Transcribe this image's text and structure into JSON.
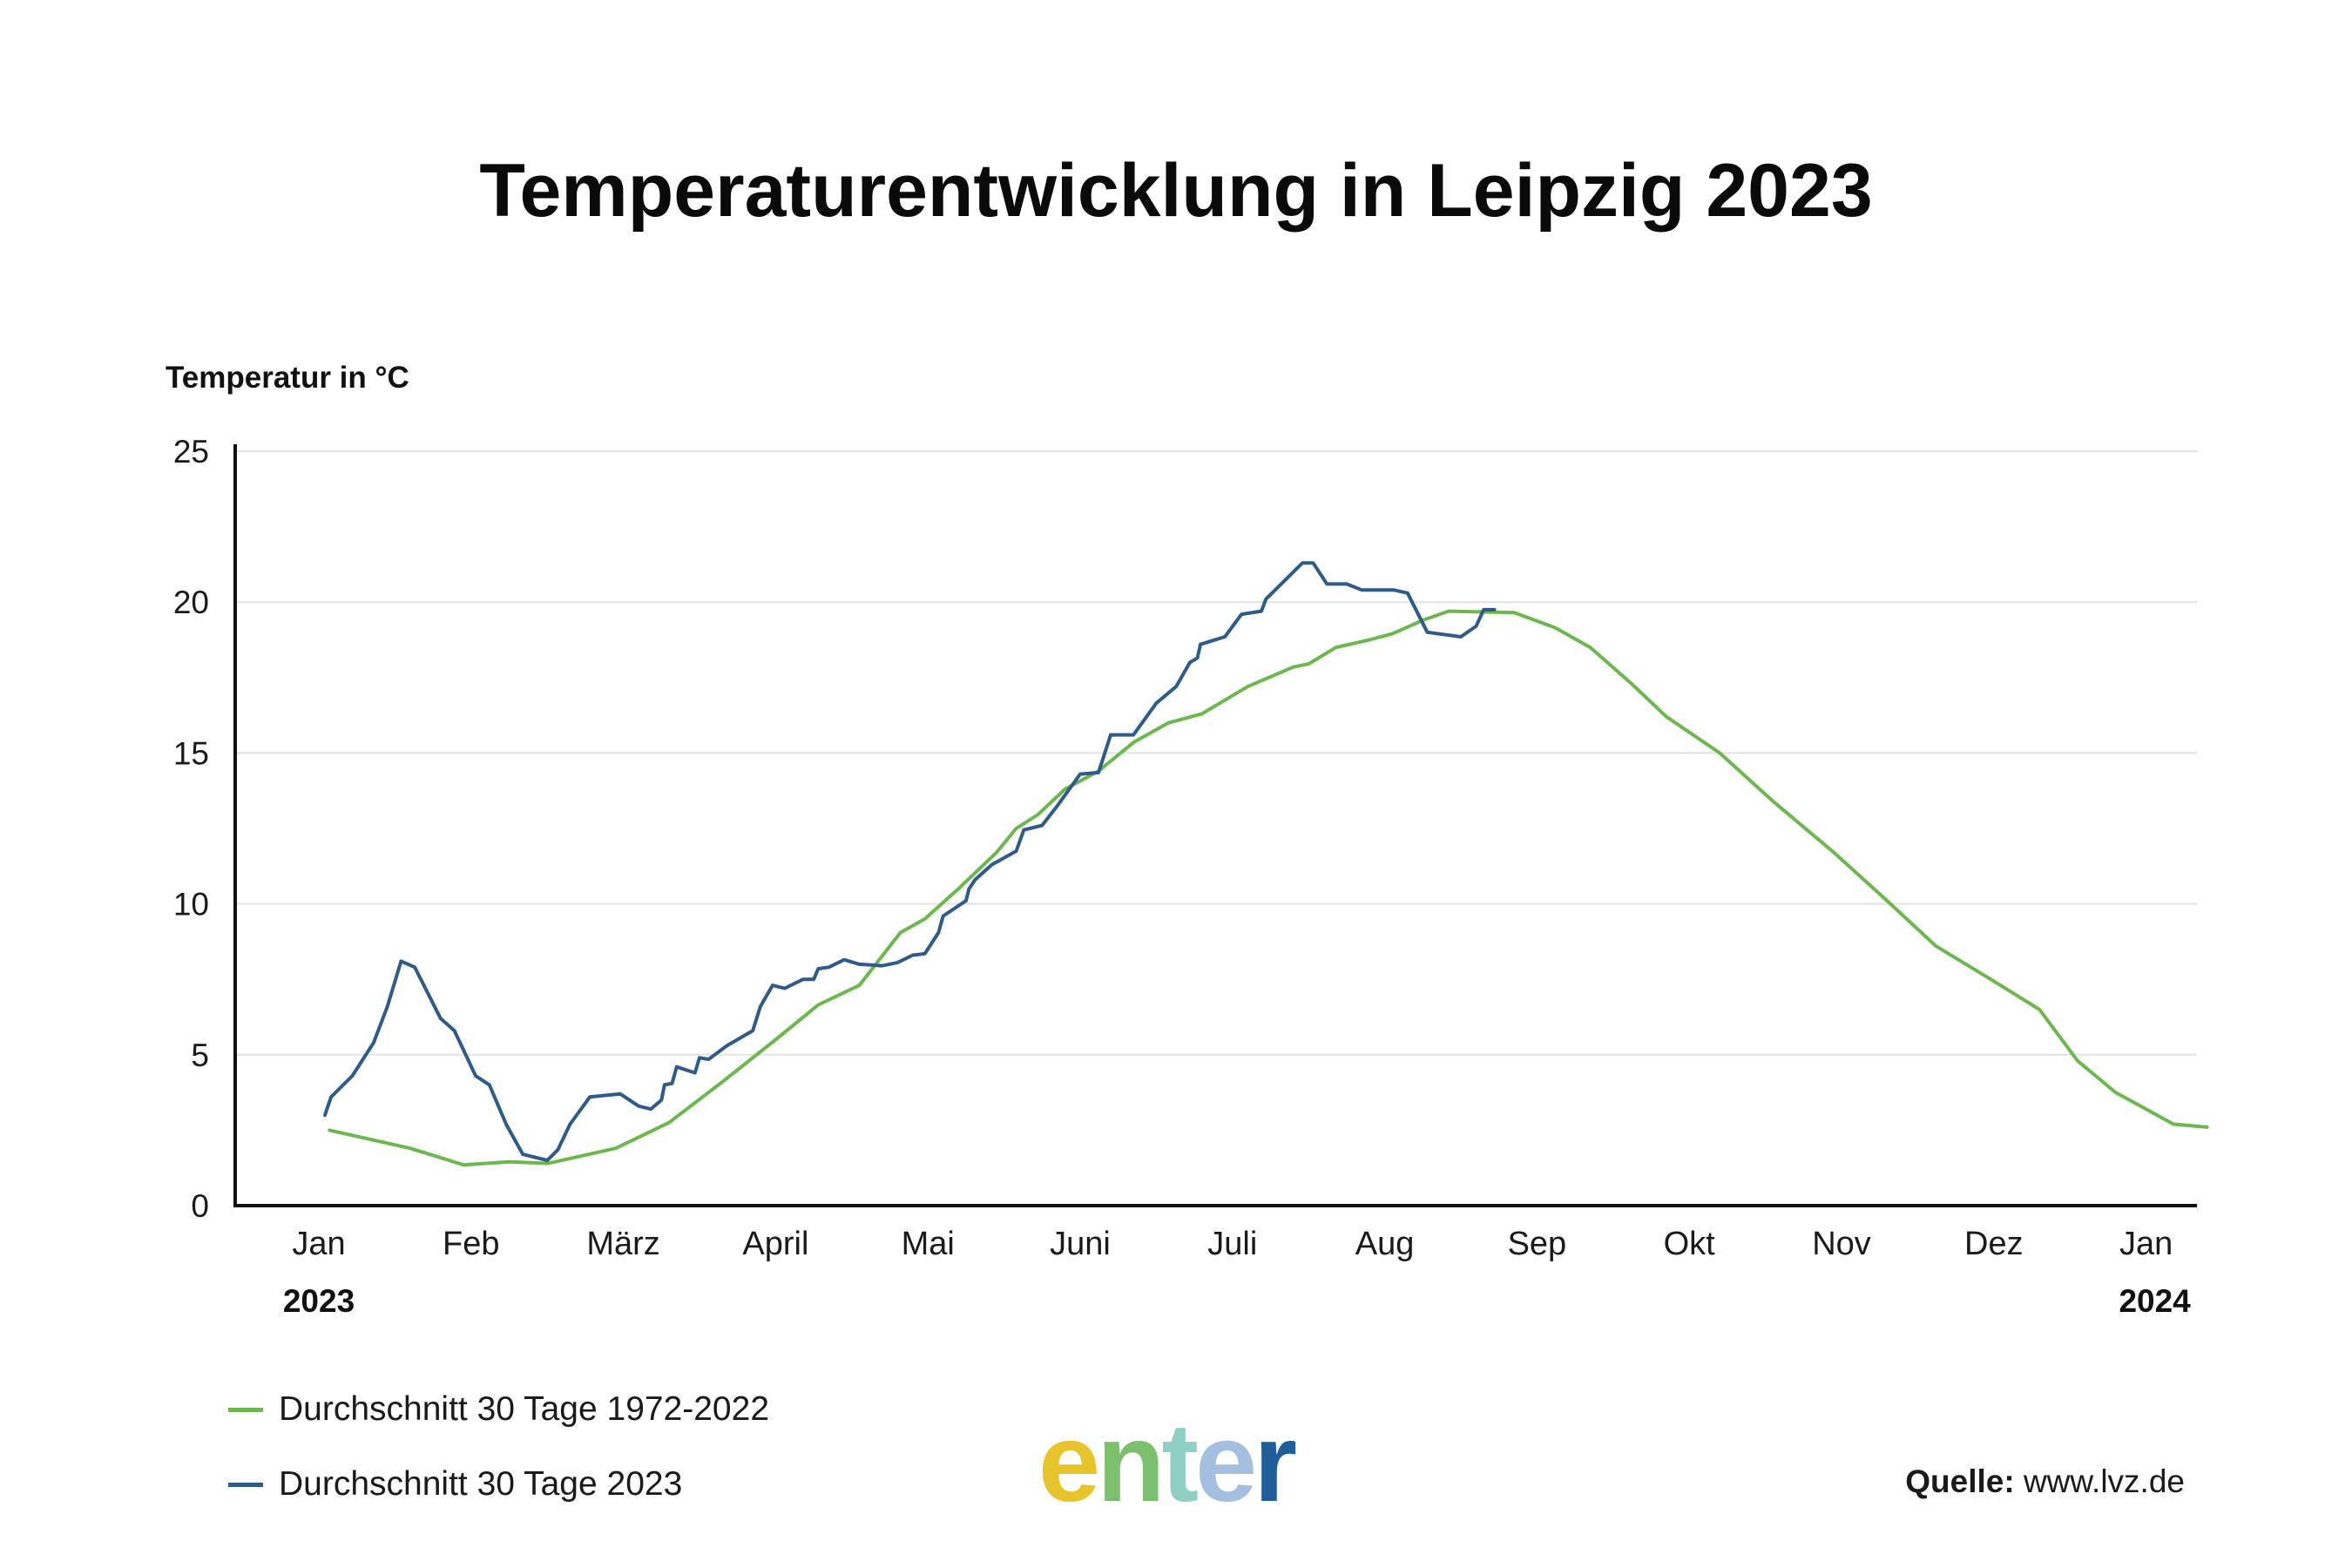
{
  "title": "Temperaturentwicklung in Leipzig 2023",
  "y_axis_label": "Temperatur in °C",
  "source": {
    "label": "Quelle:",
    "value": "www.lvz.de"
  },
  "logo": {
    "text": "enter",
    "letters": [
      "e",
      "n",
      "t",
      "e",
      "r"
    ]
  },
  "chart_data": {
    "type": "line",
    "ylim": [
      0,
      25
    ],
    "yticks": [
      0,
      5,
      10,
      15,
      20,
      25
    ],
    "xlim": [
      0,
      12
    ],
    "x_unit": "Monate ab Januar 2023",
    "months": [
      "Jan",
      "Feb",
      "März",
      "April",
      "Mai",
      "Juni",
      "Juli",
      "Aug",
      "Sep",
      "Okt",
      "Nov",
      "Dez",
      "Jan"
    ],
    "year_labels": [
      {
        "at": 0,
        "text": "2023"
      },
      {
        "at": 12,
        "text": "2024"
      }
    ],
    "grid": true,
    "legend_position": "bottom-left",
    "series": [
      {
        "name": "Durchschnitt 30 Tage 1972-2022",
        "color": "#6cb84f",
        "points": [
          [
            0.07,
            2.5
          ],
          [
            0.6,
            1.9
          ],
          [
            0.95,
            1.35
          ],
          [
            1.25,
            1.45
          ],
          [
            1.5,
            1.4
          ],
          [
            1.55,
            1.45
          ],
          [
            1.95,
            1.9
          ],
          [
            2.3,
            2.75
          ],
          [
            2.65,
            4.1
          ],
          [
            3.0,
            5.5
          ],
          [
            3.28,
            6.65
          ],
          [
            3.55,
            7.3
          ],
          [
            3.82,
            9.05
          ],
          [
            3.98,
            9.5
          ],
          [
            4.2,
            10.5
          ],
          [
            4.45,
            11.7
          ],
          [
            4.58,
            12.5
          ],
          [
            4.72,
            12.95
          ],
          [
            4.9,
            13.8
          ],
          [
            5.12,
            14.4
          ],
          [
            5.35,
            15.35
          ],
          [
            5.58,
            16.0
          ],
          [
            5.8,
            16.3
          ],
          [
            6.1,
            17.2
          ],
          [
            6.4,
            17.85
          ],
          [
            6.5,
            17.95
          ],
          [
            6.68,
            18.5
          ],
          [
            6.9,
            18.75
          ],
          [
            7.05,
            18.95
          ],
          [
            7.25,
            19.4
          ],
          [
            7.42,
            19.7
          ],
          [
            7.85,
            19.65
          ],
          [
            8.12,
            19.15
          ],
          [
            8.35,
            18.5
          ],
          [
            8.62,
            17.3
          ],
          [
            8.85,
            16.2
          ],
          [
            9.2,
            15.0
          ],
          [
            9.55,
            13.4
          ],
          [
            9.95,
            11.7
          ],
          [
            10.3,
            10.1
          ],
          [
            10.62,
            8.6
          ],
          [
            10.98,
            7.5
          ],
          [
            11.3,
            6.5
          ],
          [
            11.55,
            4.8
          ],
          [
            11.8,
            3.75
          ],
          [
            12.0,
            3.2
          ],
          [
            12.18,
            2.7
          ],
          [
            12.4,
            2.6
          ]
        ]
      },
      {
        "name": "Durchschnitt 30 Tage 2023",
        "color": "#2f5b8a",
        "points": [
          [
            0.04,
            3.0
          ],
          [
            0.08,
            3.6
          ],
          [
            0.22,
            4.3
          ],
          [
            0.36,
            5.4
          ],
          [
            0.45,
            6.6
          ],
          [
            0.54,
            8.1
          ],
          [
            0.63,
            7.9
          ],
          [
            0.8,
            6.2
          ],
          [
            0.89,
            5.8
          ],
          [
            1.03,
            4.3
          ],
          [
            1.12,
            4.0
          ],
          [
            1.23,
            2.7
          ],
          [
            1.34,
            1.7
          ],
          [
            1.5,
            1.5
          ],
          [
            1.57,
            1.85
          ],
          [
            1.65,
            2.7
          ],
          [
            1.78,
            3.6
          ],
          [
            1.98,
            3.7
          ],
          [
            2.1,
            3.3
          ],
          [
            2.18,
            3.2
          ],
          [
            2.25,
            3.5
          ],
          [
            2.27,
            4.0
          ],
          [
            2.32,
            4.05
          ],
          [
            2.35,
            4.6
          ],
          [
            2.47,
            4.4
          ],
          [
            2.5,
            4.9
          ],
          [
            2.56,
            4.85
          ],
          [
            2.68,
            5.3
          ],
          [
            2.85,
            5.8
          ],
          [
            2.9,
            6.6
          ],
          [
            2.98,
            7.3
          ],
          [
            3.06,
            7.2
          ],
          [
            3.18,
            7.5
          ],
          [
            3.25,
            7.5
          ],
          [
            3.28,
            7.85
          ],
          [
            3.35,
            7.9
          ],
          [
            3.45,
            8.15
          ],
          [
            3.55,
            8.0
          ],
          [
            3.7,
            7.95
          ],
          [
            3.8,
            8.05
          ],
          [
            3.9,
            8.3
          ],
          [
            3.98,
            8.35
          ],
          [
            4.07,
            9.05
          ],
          [
            4.1,
            9.6
          ],
          [
            4.25,
            10.1
          ],
          [
            4.27,
            10.5
          ],
          [
            4.31,
            10.8
          ],
          [
            4.42,
            11.3
          ],
          [
            4.58,
            11.75
          ],
          [
            4.63,
            12.45
          ],
          [
            4.75,
            12.6
          ],
          [
            4.85,
            13.25
          ],
          [
            5.0,
            14.3
          ],
          [
            5.12,
            14.35
          ],
          [
            5.2,
            15.6
          ],
          [
            5.35,
            15.6
          ],
          [
            5.5,
            16.65
          ],
          [
            5.63,
            17.2
          ],
          [
            5.72,
            18.0
          ],
          [
            5.77,
            18.15
          ],
          [
            5.79,
            18.6
          ],
          [
            5.95,
            18.85
          ],
          [
            6.06,
            19.6
          ],
          [
            6.19,
            19.7
          ],
          [
            6.22,
            20.1
          ],
          [
            6.3,
            20.5
          ],
          [
            6.46,
            21.3
          ],
          [
            6.53,
            21.3
          ],
          [
            6.62,
            20.6
          ],
          [
            6.75,
            20.6
          ],
          [
            6.85,
            20.4
          ],
          [
            7.06,
            20.4
          ],
          [
            7.15,
            20.3
          ],
          [
            7.28,
            19.0
          ],
          [
            7.5,
            18.85
          ],
          [
            7.6,
            19.2
          ],
          [
            7.65,
            19.75
          ],
          [
            7.72,
            19.75
          ]
        ]
      }
    ]
  }
}
